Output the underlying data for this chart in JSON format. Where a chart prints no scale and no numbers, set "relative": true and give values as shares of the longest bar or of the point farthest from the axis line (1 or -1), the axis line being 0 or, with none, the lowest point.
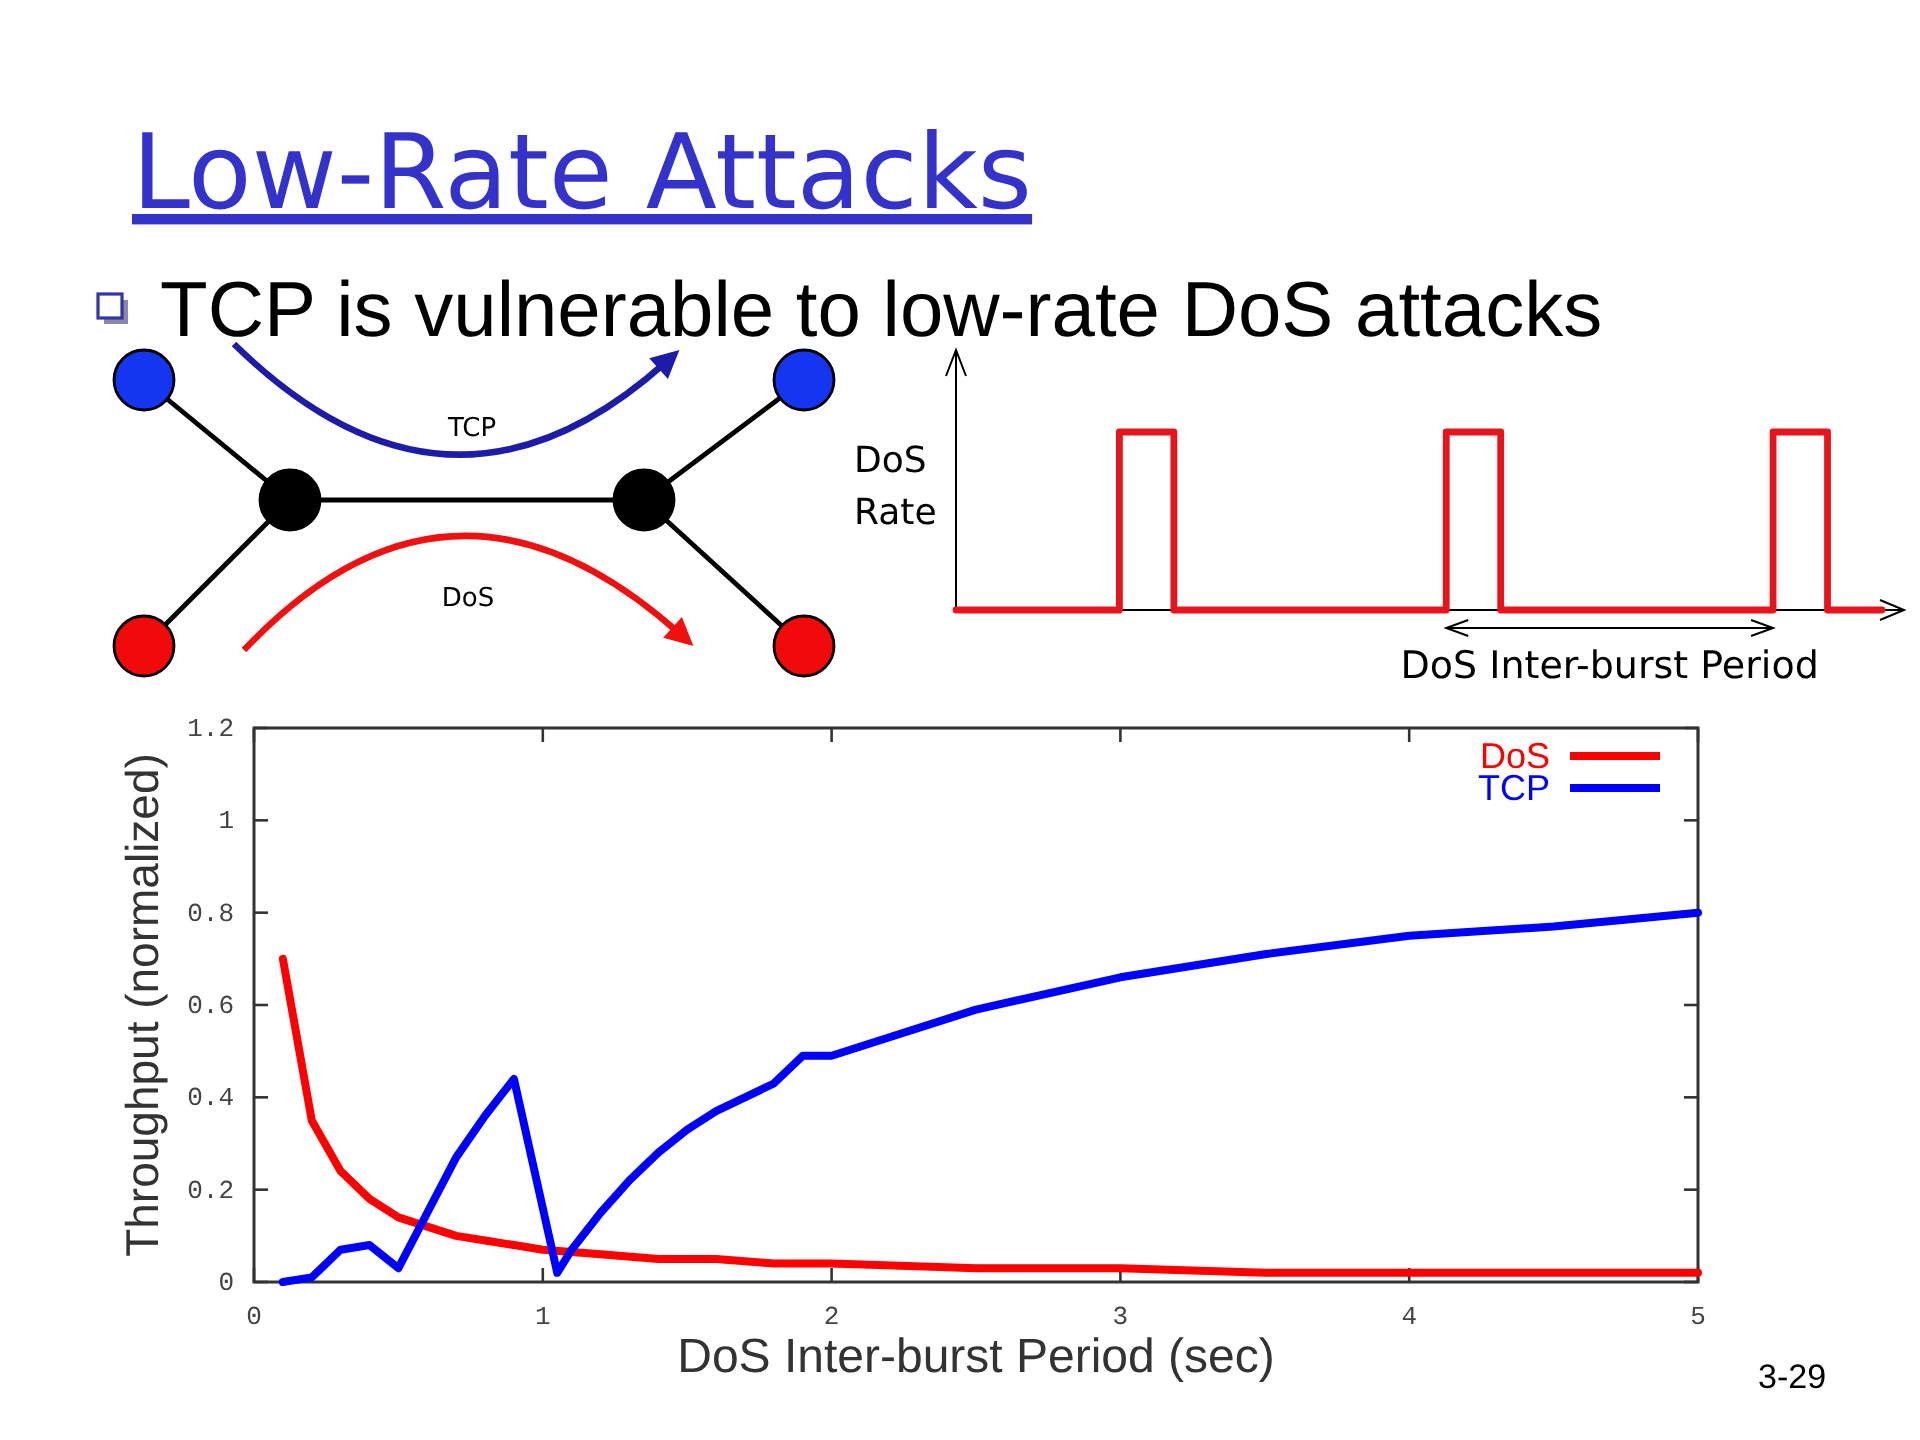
{
  "chart_data": [
    {
      "type": "other",
      "title": "Low-Rate Attacks",
      "annotations": [
        "TCP is vulnerable to low-rate DoS attacks",
        "TCP",
        "DoS",
        "3-29"
      ]
    },
    {
      "type": "step",
      "relative": true,
      "ylabel": "DoS Rate",
      "categories": [
        null,
        null,
        null,
        null,
        null,
        null,
        null,
        null,
        null,
        null,
        null,
        null,
        null,
        null,
        null,
        null,
        null,
        null
      ],
      "values": [
        0,
        0,
        0,
        1,
        0,
        0,
        0,
        0,
        0,
        1,
        0,
        0,
        0,
        0,
        0,
        1,
        0,
        0
      ],
      "color": "#e8141c",
      "annotations": [
        "DoS Inter-burst Period"
      ]
    },
    {
      "type": "line",
      "xlabel": "DoS Inter-burst Period (sec)",
      "ylabel": "Throughput (normalized)",
      "xlim": [
        0,
        5
      ],
      "ylim": [
        0,
        1.2
      ],
      "xticks": [
        0,
        1,
        2,
        3,
        4,
        5
      ],
      "yticks": [
        0,
        0.2,
        0.4,
        0.6,
        0.8,
        1,
        1.2
      ],
      "legend": "top right",
      "series": [
        {
          "name": "DoS",
          "color": "#ff0000",
          "x": [
            0.1,
            0.2,
            0.3,
            0.4,
            0.5,
            0.6,
            0.7,
            0.8,
            0.9,
            1,
            1.2,
            1.4,
            1.6,
            1.8,
            2,
            2.5,
            3,
            3.5,
            4,
            4.5,
            5
          ],
          "values": [
            0.7,
            0.35,
            0.24,
            0.18,
            0.14,
            0.12,
            0.1,
            0.09,
            0.08,
            0.07,
            0.06,
            0.05,
            0.05,
            0.04,
            0.04,
            0.03,
            0.03,
            0.02,
            0.02,
            0.02,
            0.02
          ]
        },
        {
          "name": "TCP",
          "color": "#0000ff",
          "x": [
            0.1,
            0.2,
            0.3,
            0.4,
            0.5,
            0.6,
            0.7,
            0.8,
            0.9,
            1.05,
            1.1,
            1.2,
            1.3,
            1.4,
            1.5,
            1.6,
            1.7,
            1.8,
            1.9,
            2,
            2.5,
            3,
            3.5,
            4,
            4.5,
            5
          ],
          "values": [
            0,
            0.01,
            0.07,
            0.08,
            0.03,
            0.15,
            0.27,
            0.36,
            0.44,
            0.02,
            0.07,
            0.15,
            0.22,
            0.28,
            0.33,
            0.37,
            0.4,
            0.43,
            0.49,
            0.49,
            0.59,
            0.66,
            0.71,
            0.75,
            0.77,
            0.8
          ]
        }
      ]
    }
  ]
}
